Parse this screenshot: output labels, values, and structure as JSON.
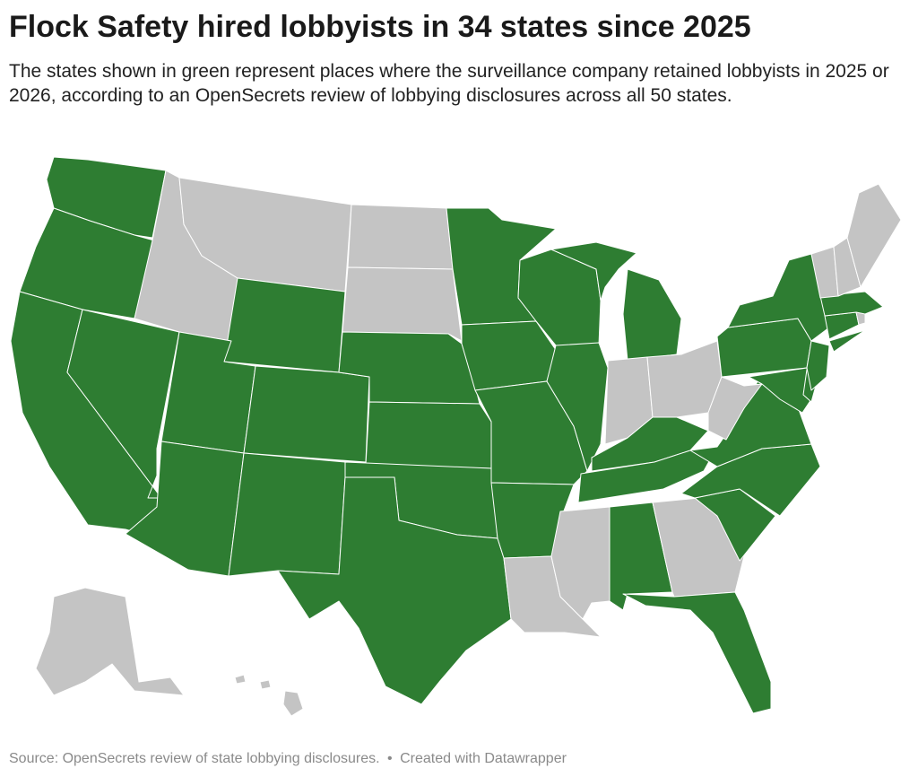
{
  "header": {
    "title": "Flock Safety hired lobbyists in 34 states since 2025",
    "subtitle": "The states shown in green represent places where the surveillance company retained lobbyists in 2025 or 2026, according to an OpenSecrets review of lobbying disclosures across all 50 states."
  },
  "map": {
    "colors": {
      "lobbyists": "#2e7d32",
      "none": "#c4c4c4",
      "border": "#ffffff"
    },
    "states_with_lobbyists": [
      "WA",
      "OR",
      "CA",
      "NV",
      "UT",
      "AZ",
      "WY",
      "CO",
      "NM",
      "NE",
      "KS",
      "OK",
      "TX",
      "MN",
      "IA",
      "MO",
      "AR",
      "WI",
      "IL",
      "MI",
      "KY",
      "TN",
      "AL",
      "FL",
      "SC",
      "NC",
      "VA",
      "MD",
      "DE",
      "PA",
      "NJ",
      "NY",
      "CT",
      "MA"
    ],
    "states_without_lobbyists": [
      "AK",
      "HI",
      "ID",
      "MT",
      "ND",
      "SD",
      "LA",
      "MS",
      "GA",
      "IN",
      "OH",
      "WV",
      "ME",
      "NH",
      "VT",
      "RI"
    ]
  },
  "footer": {
    "source": "Source: OpenSecrets review of state lobbying disclosures.",
    "separator": "•",
    "credit": "Created with Datawrapper"
  }
}
